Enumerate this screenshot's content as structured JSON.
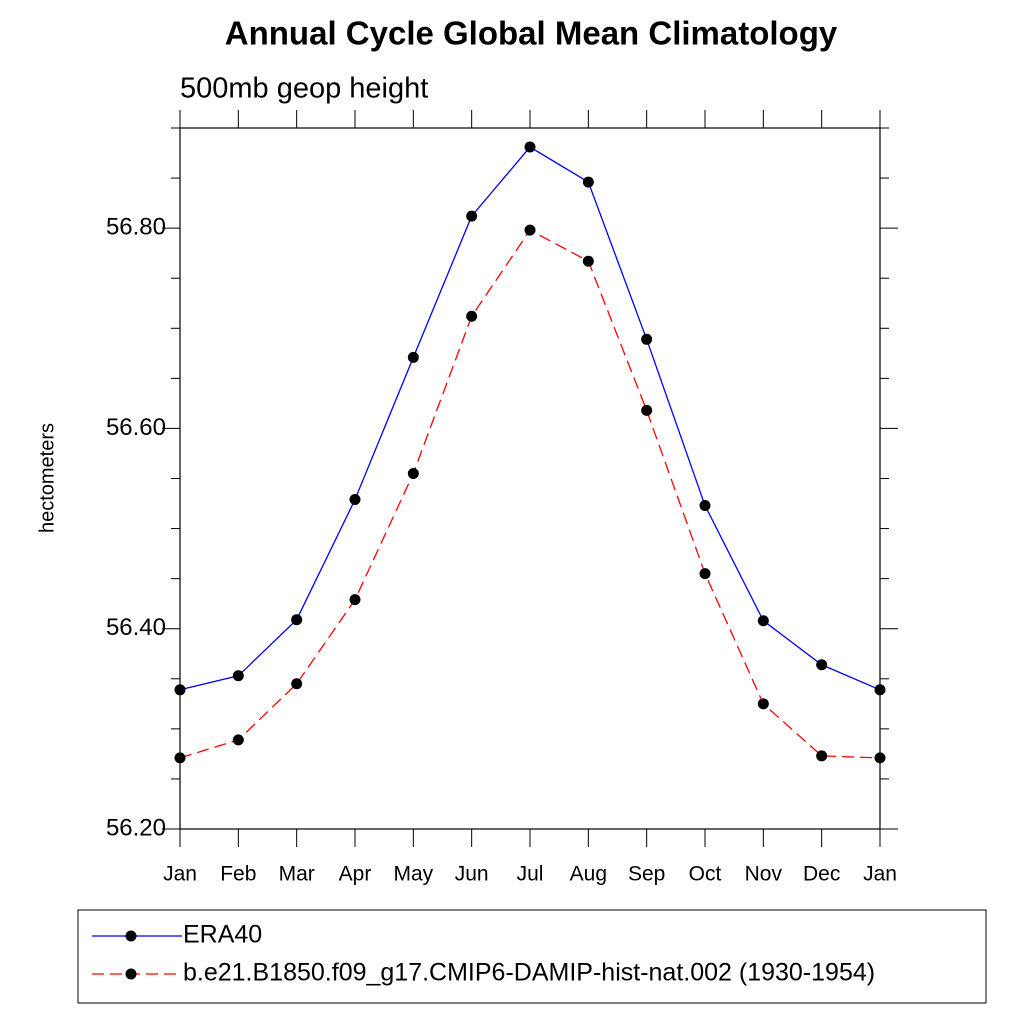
{
  "chart_data": {
    "type": "line",
    "title": "Annual Cycle Global Mean Climatology",
    "subtitle": "500mb geop height",
    "y_label": "hectometers",
    "categories": [
      "Jan",
      "Feb",
      "Mar",
      "Apr",
      "May",
      "Jun",
      "Jul",
      "Aug",
      "Sep",
      "Oct",
      "Nov",
      "Dec",
      "Jan"
    ],
    "series": [
      {
        "name": "ERA40",
        "color": "#0000ff",
        "dashed": false,
        "values": [
          56.339,
          56.353,
          56.409,
          56.529,
          56.671,
          56.812,
          56.881,
          56.846,
          56.689,
          56.523,
          56.408,
          56.364,
          56.339
        ]
      },
      {
        "name": "b.e21.B1850.f09_g17.CMIP6-DAMIP-hist-nat.002 (1930-1954)",
        "color": "#ff0000",
        "dashed": true,
        "values": [
          56.271,
          56.289,
          56.345,
          56.429,
          56.555,
          56.712,
          56.798,
          56.767,
          56.618,
          56.455,
          56.325,
          56.273,
          56.271
        ]
      }
    ],
    "ylim": [
      56.2,
      56.9
    ],
    "yticks": [
      {
        "value": 56.2,
        "label": "56.20"
      },
      {
        "value": 56.4,
        "label": "56.40"
      },
      {
        "value": 56.6,
        "label": "56.60"
      },
      {
        "value": 56.8,
        "label": "56.80"
      }
    ],
    "yminor_ticks": [
      56.25,
      56.3,
      56.35,
      56.45,
      56.5,
      56.55,
      56.65,
      56.7,
      56.75,
      56.85,
      56.9
    ],
    "marker_color": "#000000"
  }
}
